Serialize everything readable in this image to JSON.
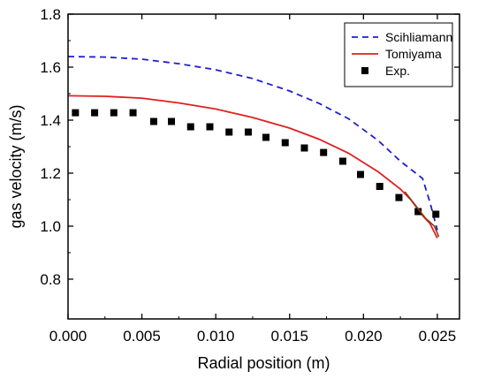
{
  "chart_data": {
    "type": "line",
    "title": "",
    "xlabel": "Radial position (m)",
    "ylabel": "gas velocity (m/s)",
    "xlim": [
      0.0,
      0.0265
    ],
    "ylim": [
      0.65,
      1.8
    ],
    "xticks": [
      0.0,
      0.005,
      0.01,
      0.015,
      0.02,
      0.025
    ],
    "xtick_labels": [
      "0.000",
      "0.005",
      "0.010",
      "0.015",
      "0.020",
      "0.025"
    ],
    "yticks": [
      0.8,
      1.0,
      1.2,
      1.4,
      1.6,
      1.8
    ],
    "ytick_labels": [
      "0.8",
      "1.0",
      "1.2",
      "1.4",
      "1.6",
      "1.8"
    ],
    "grid": false,
    "legend_position": "top-right",
    "series": [
      {
        "name": "Scihliamann",
        "kind": "line",
        "style": "dashed",
        "color": "#1f1fcc",
        "x": [
          0.0,
          0.0025,
          0.005,
          0.0075,
          0.01,
          0.0125,
          0.015,
          0.017,
          0.019,
          0.021,
          0.0225,
          0.0232,
          0.024,
          0.0245,
          0.025
        ],
        "y": [
          1.64,
          1.638,
          1.63,
          1.613,
          1.59,
          1.557,
          1.51,
          1.463,
          1.405,
          1.323,
          1.245,
          1.215,
          1.18,
          1.09,
          0.985
        ]
      },
      {
        "name": "Tomiyama",
        "kind": "line",
        "style": "solid",
        "color": "#e02020",
        "x": [
          0.0,
          0.0025,
          0.005,
          0.0075,
          0.01,
          0.0125,
          0.015,
          0.017,
          0.019,
          0.021,
          0.0225,
          0.0232,
          0.024,
          0.0245,
          0.025
        ],
        "y": [
          1.492,
          1.49,
          1.483,
          1.465,
          1.442,
          1.41,
          1.37,
          1.328,
          1.275,
          1.205,
          1.14,
          1.1,
          1.04,
          1.01,
          0.955
        ]
      },
      {
        "name": "Exp.",
        "kind": "scatter",
        "marker": "square",
        "color": "#000000",
        "x": [
          0.0005,
          0.0018,
          0.0031,
          0.0044,
          0.0058,
          0.007,
          0.0083,
          0.0096,
          0.0109,
          0.0122,
          0.0134,
          0.0147,
          0.016,
          0.0173,
          0.0186,
          0.0198,
          0.0211,
          0.0224,
          0.0237,
          0.0249
        ],
        "y": [
          1.428,
          1.428,
          1.428,
          1.428,
          1.395,
          1.395,
          1.375,
          1.375,
          1.355,
          1.355,
          1.335,
          1.315,
          1.295,
          1.278,
          1.245,
          1.195,
          1.15,
          1.108,
          1.055,
          1.045
        ]
      }
    ],
    "overlay_curve": {
      "color": "#8b3a1a",
      "x": [
        0.0228,
        0.0235,
        0.0242,
        0.0248,
        0.0251
      ],
      "y": [
        1.13,
        1.08,
        1.03,
        1.0,
        0.96
      ]
    }
  }
}
